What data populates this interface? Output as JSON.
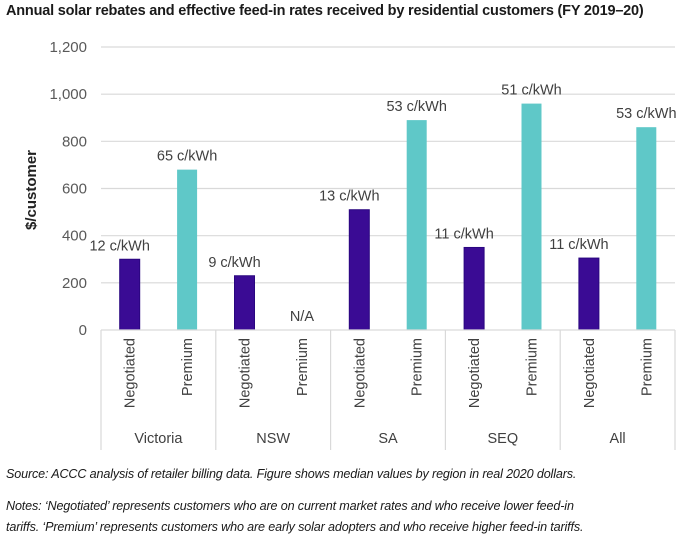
{
  "title": "Annual solar rebates and effective feed-in rates received by residential customers (FY 2019–20)",
  "chart_data": {
    "type": "bar",
    "title": "Annual solar rebates and effective feed-in rates received by residential customers (FY 2019–20)",
    "xlabel": "",
    "ylabel": "$/customer",
    "ylim": [
      0,
      1200
    ],
    "yticks": [
      0,
      200,
      400,
      600,
      800,
      1000,
      1200
    ],
    "ytick_labels": [
      "0",
      "200",
      "400",
      "600",
      "800",
      "1,000",
      "1,200"
    ],
    "grid": true,
    "legend": "none",
    "groups": [
      "Victoria",
      "NSW",
      "SA",
      "SEQ",
      "All"
    ],
    "subcategories": [
      "Negotiated",
      "Premium"
    ],
    "series": [
      {
        "name": "Negotiated",
        "color": "#3a0b94",
        "values": [
          300,
          230,
          510,
          350,
          305
        ],
        "labels": [
          "12 c/kWh",
          "9 c/kWh",
          "13 c/kWh",
          "11 c/kWh",
          "11 c/kWh"
        ]
      },
      {
        "name": "Premium",
        "color": "#5fc8c8",
        "values": [
          680,
          null,
          890,
          960,
          860
        ],
        "labels": [
          "65 c/kWh",
          "N/A",
          "53 c/kWh",
          "51 c/kWh",
          "53 c/kWh"
        ]
      }
    ]
  },
  "source": "Source:  ACCC analysis of retailer billing data. Figure shows median values by region in real 2020 dollars.",
  "notes_line1": "Notes:  ‘Negotiated’ represents customers who are on current market rates and who receive lower feed-in",
  "notes_line2": "tariffs. ‘Premium’ represents customers who are early solar adopters and who receive higher feed-in tariffs."
}
